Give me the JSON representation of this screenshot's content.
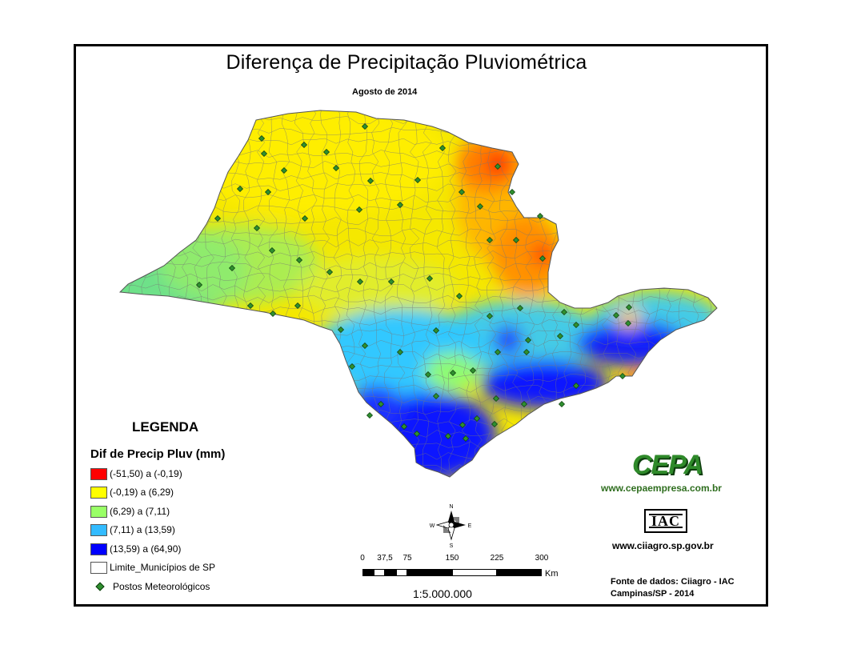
{
  "map": {
    "title": "Diferença de Precipitação Pluviométrica",
    "subtitle": "Agosto de 2014"
  },
  "legend": {
    "heading": "LEGENDA",
    "subheading": "Dif de Precip Pluv (mm)",
    "classes": [
      {
        "label": "(-51,50) a (-0,19)",
        "color": "#ff0000"
      },
      {
        "label": "(-0,19) a (6,29)",
        "color": "#ffff00"
      },
      {
        "label": "(6,29) a (7,11)",
        "color": "#99ff66"
      },
      {
        "label": "(7,11) a (13,59)",
        "color": "#33bbff"
      },
      {
        "label": "(13,59) a (64,90)",
        "color": "#0000ff"
      }
    ],
    "boundary_label": "Limite_Municípios de SP",
    "stations_label": "Postos Meteorológicos",
    "boundary_color": "#888888",
    "station_color": "#2f8f2f"
  },
  "scale": {
    "ticks": [
      "0",
      "37,5",
      "75",
      "150",
      "225",
      "300"
    ],
    "unit": "Km",
    "ratio": "1:5.000.000"
  },
  "north_arrow": {
    "n": "N",
    "s": "S",
    "e": "E",
    "w": "W"
  },
  "logos": {
    "cepa": "CEPA",
    "cepa_url": "www.cepaempresa.com.br",
    "iac": "IAC",
    "iac_url": "www.ciiagro.sp.gov.br"
  },
  "source": {
    "line1": "Fonte de dados: Ciiagro - IAC",
    "line2": "Campinas/SP - 2014"
  }
}
